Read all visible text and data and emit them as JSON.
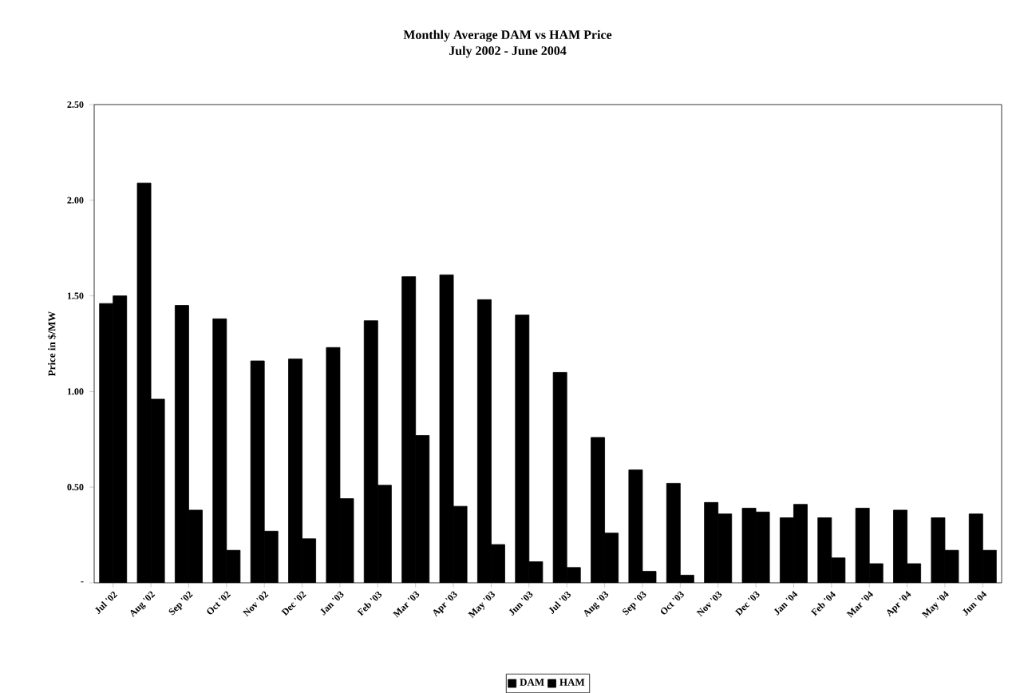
{
  "chart_data": {
    "type": "bar",
    "title": "Monthly Average DAM vs HAM Price",
    "subtitle": "July 2002 - June 2004",
    "ylabel": "Price in $/MW",
    "categories": [
      "Jul '02",
      "Aug '02",
      "Sep '02",
      "Oct '02",
      "Nov '02",
      "Dec '02",
      "Jan '03",
      "Feb '03",
      "Mar '03",
      "Apr '03",
      "May '03",
      "Jun '03",
      "Jul '03",
      "Aug '03",
      "Sep '03",
      "Oct '03",
      "Nov '03",
      "Dec '03",
      "Jan '04",
      "Feb '04",
      "Mar '04",
      "Apr '04",
      "May '04",
      "Jun '04"
    ],
    "series": [
      {
        "name": "DAM",
        "color": "#000000",
        "values": [
          1.46,
          2.09,
          1.45,
          1.38,
          1.16,
          1.17,
          1.23,
          1.37,
          1.6,
          1.61,
          1.48,
          1.4,
          1.1,
          0.76,
          0.59,
          0.52,
          0.42,
          0.39,
          0.34,
          0.34,
          0.39,
          0.38,
          0.34,
          0.36
        ]
      },
      {
        "name": "HAM",
        "color": "#000000",
        "values": [
          1.5,
          0.96,
          0.38,
          0.17,
          0.27,
          0.23,
          0.44,
          0.51,
          0.77,
          0.4,
          0.2,
          0.11,
          0.08,
          0.26,
          0.06,
          0.04,
          0.36,
          0.37,
          0.41,
          0.13,
          0.1,
          0.1,
          0.17,
          0.17
        ]
      }
    ],
    "ylim": [
      0,
      2.5
    ],
    "yticks": [
      {
        "value": 0,
        "label": "-"
      },
      {
        "value": 0.5,
        "label": "0.50"
      },
      {
        "value": 1.0,
        "label": "1.00"
      },
      {
        "value": 1.5,
        "label": "1.50"
      },
      {
        "value": 2.0,
        "label": "2.00"
      },
      {
        "value": 2.5,
        "label": "2.50"
      }
    ],
    "legend": "bottom"
  }
}
